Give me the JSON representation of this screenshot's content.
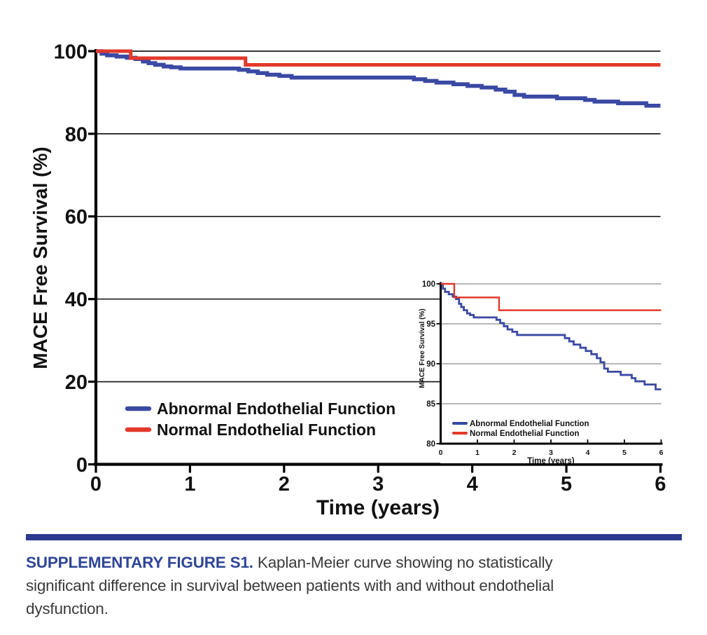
{
  "caption": {
    "label": "SUPPLEMENTARY FIGURE S1.",
    "lines": [
      " Kaplan-Meier curve showing no statistically",
      "significant difference in survival between patients with and without endothelial",
      "dysfunction."
    ],
    "label_color": "#2e4596",
    "text_color": "#3a3a3a",
    "divider_color": "#2b3990"
  },
  "chart_data": [
    {
      "id": "main-kaplan-meier",
      "type": "line",
      "subtype": "step",
      "title": "",
      "xlabel": "Time (years)",
      "ylabel": "MACE Free Survival (%)",
      "xlim": [
        0,
        6
      ],
      "ylim": [
        0,
        100
      ],
      "xticks": [
        0,
        1,
        2,
        3,
        4,
        5,
        6
      ],
      "yticks": [
        0,
        20,
        40,
        60,
        80,
        100
      ],
      "grid": "horizontal",
      "grid_color": "#1b1b1b",
      "axis_color": "#000000",
      "legend_position": "inside-bottom-left",
      "series": [
        {
          "name": "Abnormal Endothelial Function",
          "color": "#3a49a3",
          "points": [
            [
              0,
              100
            ],
            [
              0.06,
              99.4
            ],
            [
              0.12,
              99.0
            ],
            [
              0.22,
              98.7
            ],
            [
              0.33,
              98.4
            ],
            [
              0.42,
              98.1
            ],
            [
              0.5,
              97.5
            ],
            [
              0.56,
              97.1
            ],
            [
              0.63,
              96.7
            ],
            [
              0.72,
              96.3
            ],
            [
              0.8,
              96.1
            ],
            [
              0.9,
              95.8
            ],
            [
              1.52,
              95.5
            ],
            [
              1.62,
              95.1
            ],
            [
              1.72,
              94.7
            ],
            [
              1.82,
              94.3
            ],
            [
              1.95,
              94.0
            ],
            [
              2.08,
              93.6
            ],
            [
              3.38,
              93.2
            ],
            [
              3.5,
              92.8
            ],
            [
              3.62,
              92.4
            ],
            [
              3.8,
              92.0
            ],
            [
              3.95,
              91.6
            ],
            [
              4.1,
              91.2
            ],
            [
              4.25,
              90.7
            ],
            [
              4.35,
              90.2
            ],
            [
              4.45,
              89.4
            ],
            [
              4.55,
              89.0
            ],
            [
              4.9,
              88.6
            ],
            [
              5.2,
              88.2
            ],
            [
              5.3,
              87.8
            ],
            [
              5.55,
              87.4
            ],
            [
              5.85,
              86.8
            ],
            [
              6,
              86.8
            ]
          ]
        },
        {
          "name": "Normal Endothelial Function",
          "color": "#e2392c",
          "points": [
            [
              0,
              100
            ],
            [
              0.37,
              98.3
            ],
            [
              1.59,
              96.7
            ],
            [
              6,
              96.7
            ]
          ]
        }
      ]
    },
    {
      "id": "inset-kaplan-meier-zoom",
      "type": "line",
      "subtype": "step",
      "title": "",
      "xlabel": "Time (years)",
      "ylabel": "MACE Free Survival (%)",
      "xlim": [
        0,
        6
      ],
      "ylim": [
        80,
        100
      ],
      "xticks": [
        0,
        1,
        2,
        3,
        4,
        5,
        6
      ],
      "yticks": [
        80,
        85,
        90,
        95,
        100
      ],
      "grid": "horizontal",
      "grid_color": "#9e9e9e",
      "axis_color": "#000000",
      "legend_position": "inside-bottom-left",
      "series": [
        {
          "name": "Abnormal Endothelial Function",
          "color": "#3a49a3",
          "points": [
            [
              0,
              100
            ],
            [
              0.06,
              99.4
            ],
            [
              0.12,
              99.0
            ],
            [
              0.22,
              98.7
            ],
            [
              0.33,
              98.4
            ],
            [
              0.42,
              98.1
            ],
            [
              0.5,
              97.5
            ],
            [
              0.56,
              97.1
            ],
            [
              0.63,
              96.7
            ],
            [
              0.72,
              96.3
            ],
            [
              0.8,
              96.1
            ],
            [
              0.9,
              95.8
            ],
            [
              1.52,
              95.5
            ],
            [
              1.62,
              95.1
            ],
            [
              1.72,
              94.7
            ],
            [
              1.82,
              94.3
            ],
            [
              1.95,
              94.0
            ],
            [
              2.08,
              93.6
            ],
            [
              3.38,
              93.2
            ],
            [
              3.5,
              92.8
            ],
            [
              3.62,
              92.4
            ],
            [
              3.8,
              92.0
            ],
            [
              3.95,
              91.6
            ],
            [
              4.1,
              91.2
            ],
            [
              4.25,
              90.7
            ],
            [
              4.35,
              90.2
            ],
            [
              4.45,
              89.4
            ],
            [
              4.55,
              89.0
            ],
            [
              4.9,
              88.6
            ],
            [
              5.2,
              88.2
            ],
            [
              5.3,
              87.8
            ],
            [
              5.55,
              87.4
            ],
            [
              5.85,
              86.8
            ],
            [
              6,
              86.8
            ]
          ]
        },
        {
          "name": "Normal Endothelial Function",
          "color": "#e2392c",
          "points": [
            [
              0,
              100
            ],
            [
              0.37,
              98.3
            ],
            [
              1.59,
              96.7
            ],
            [
              6,
              96.7
            ]
          ]
        }
      ]
    }
  ]
}
